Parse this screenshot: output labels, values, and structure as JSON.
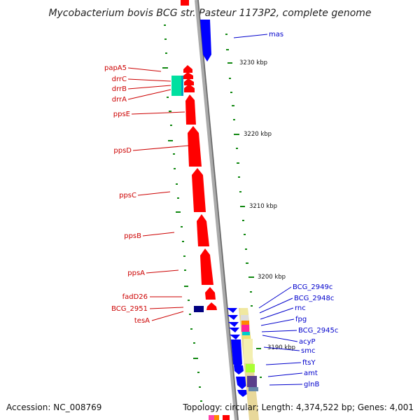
{
  "title": "Mycobacterium bovis BCG str. Pasteur 1173P2, complete genome",
  "footer": {
    "accession": "Accession: NC_008769",
    "summary": "Topology: circular; Length: 4,374,522 bp; Genes: 4,001"
  },
  "colors": {
    "forward": "#ff0000",
    "reverse": "#0000ff",
    "backbone": "#999999",
    "gc_marks": "#118811",
    "left_label": "#cc0000",
    "right_label": "#0000cc"
  },
  "ticks": [
    "3230 kbp",
    "3220 kbp",
    "3210 kbp",
    "3200 kbp",
    "3190 kbp"
  ],
  "left_genes": [
    "papA5",
    "drrC",
    "drrB",
    "drrA",
    "ppsE",
    "ppsD",
    "ppsC",
    "ppsB",
    "ppsA",
    "fadD26",
    "BCG_2951",
    "tesA"
  ],
  "right_genes": [
    "mas",
    "BCG_2949c",
    "BCG_2948c",
    "rnc",
    "fpg",
    "BCG_2945c",
    "acyP",
    "smc",
    "ftsY",
    "amt",
    "glnB"
  ]
}
